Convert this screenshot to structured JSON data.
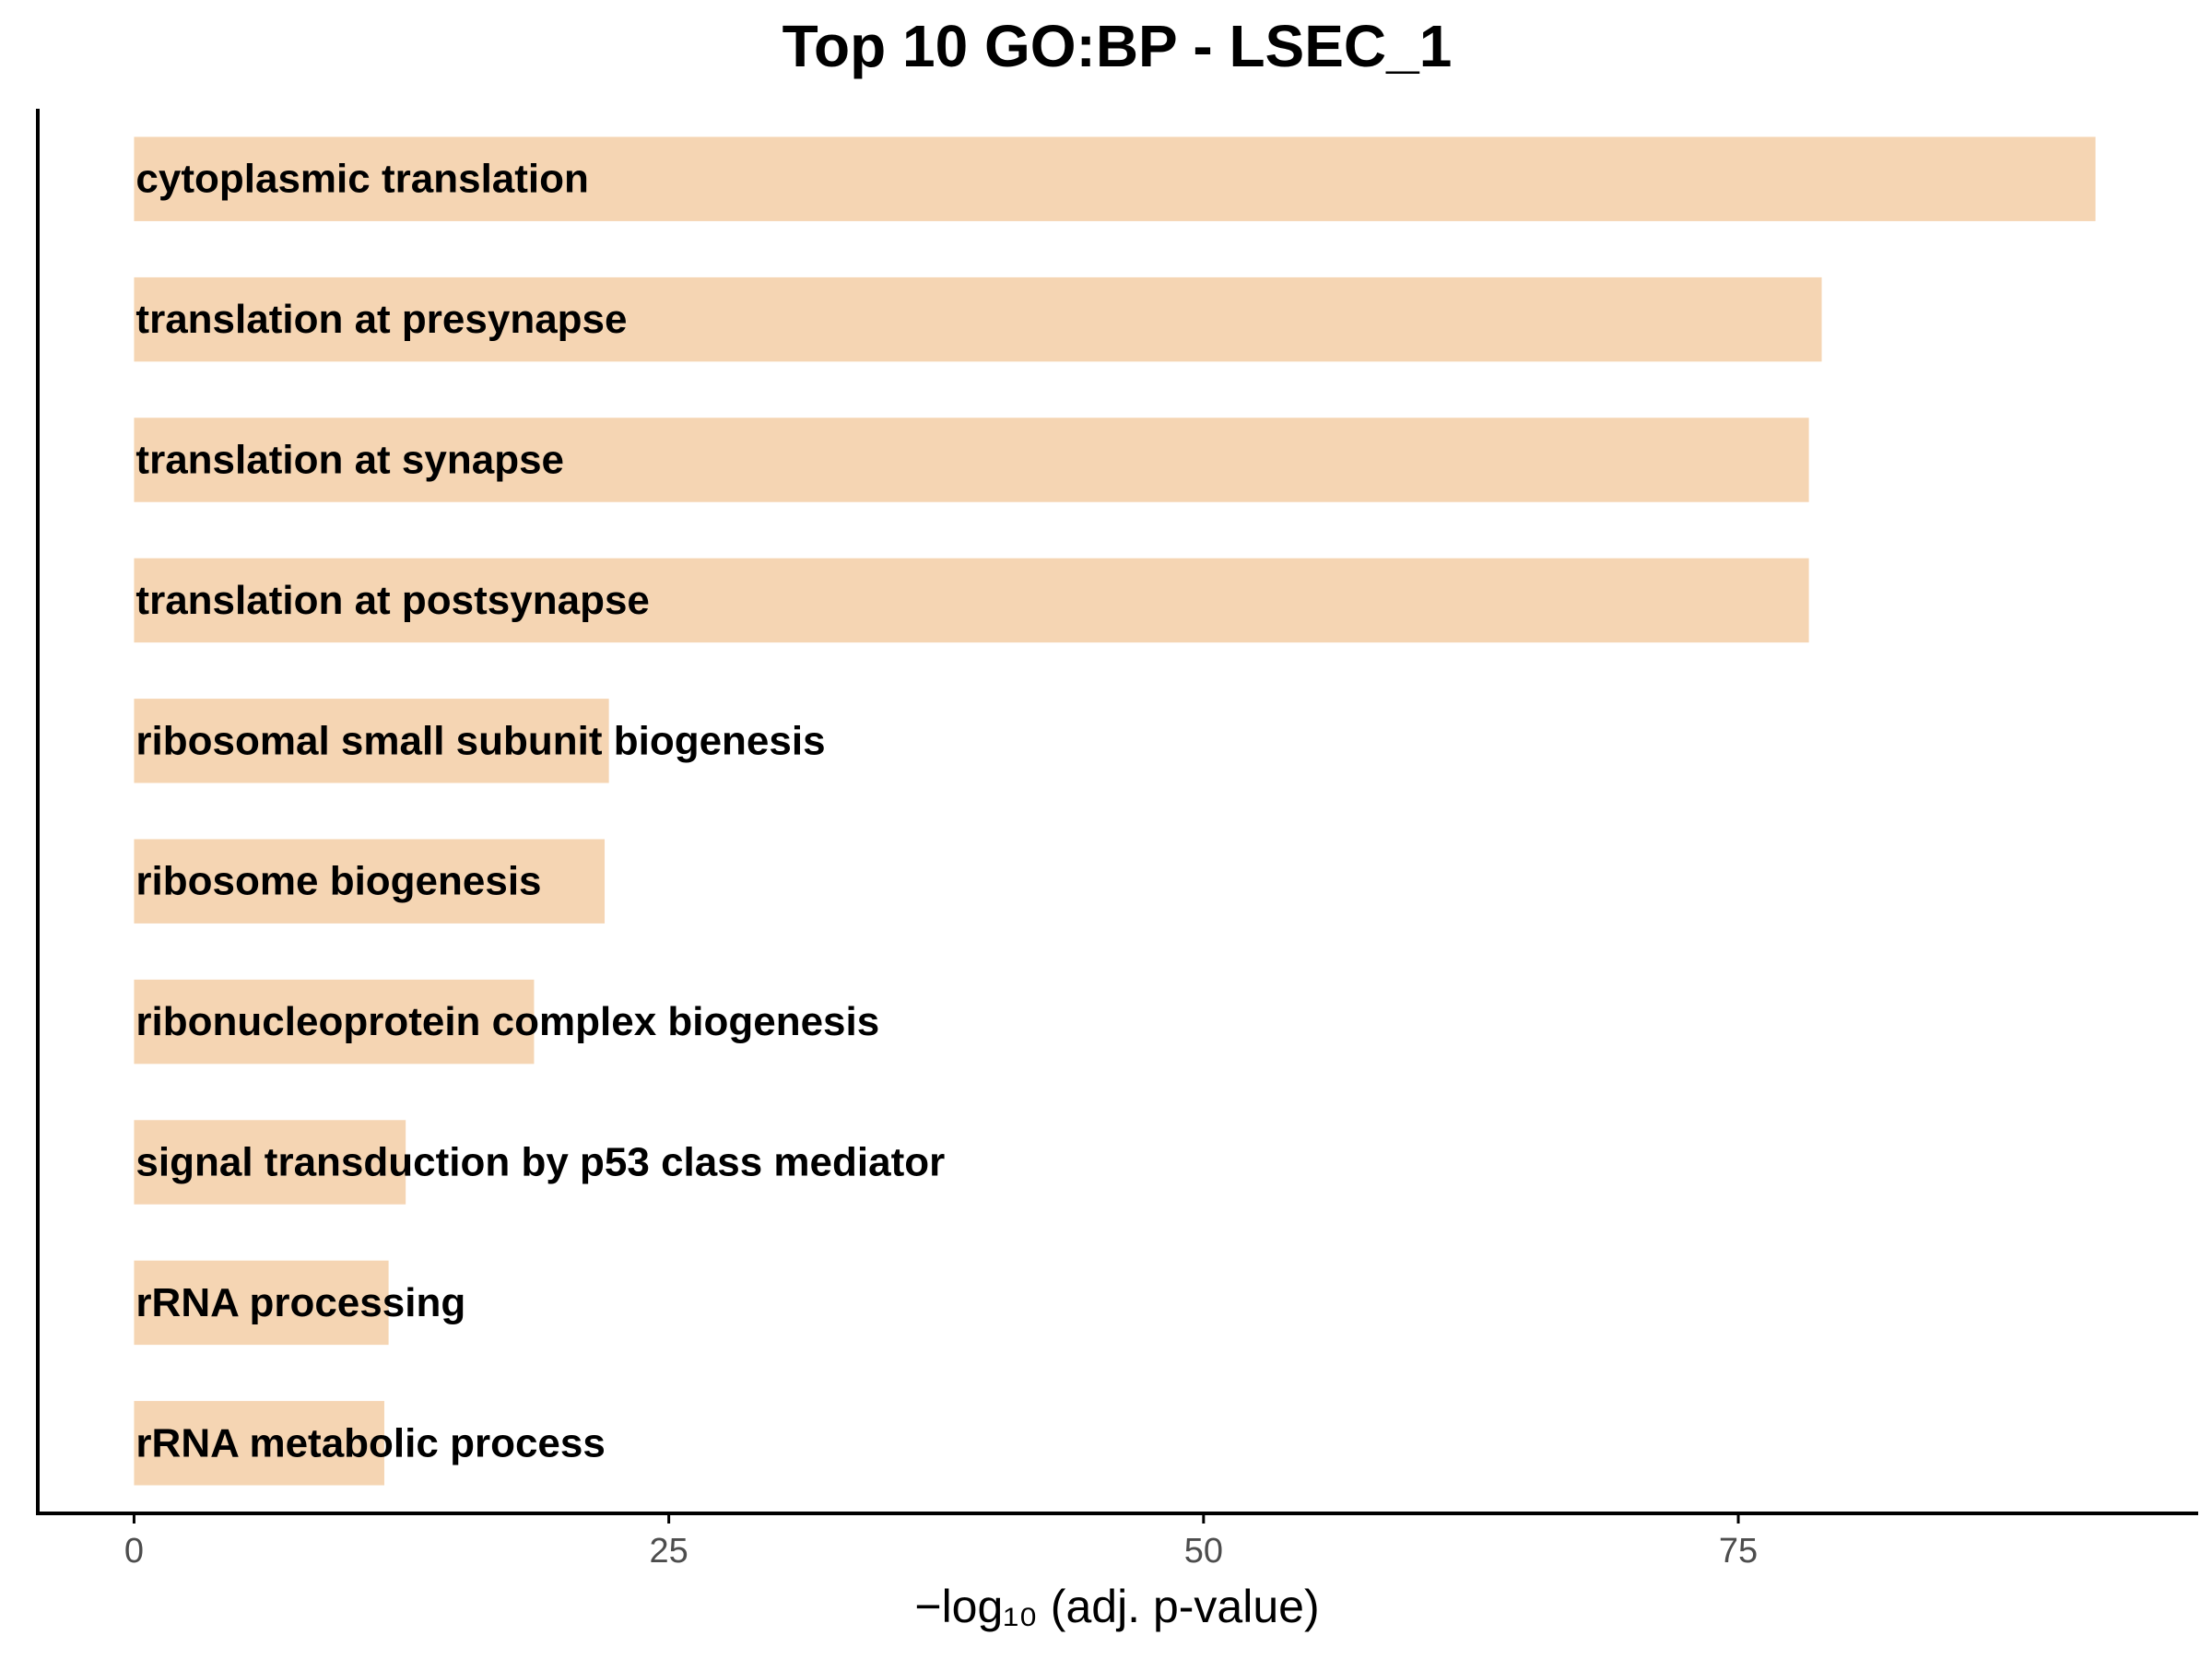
{
  "chart_data": {
    "type": "bar",
    "orientation": "horizontal",
    "title": "Top 10 GO:BP - LSEC_1",
    "xlabel": "−log₁₀ (adj. p-value)",
    "ylabel": "",
    "categories": [
      "cytoplasmic translation",
      "translation at presynapse",
      "translation at synapse",
      "translation at postsynapse",
      "ribosomal small subunit biogenesis",
      "ribosome biogenesis",
      "ribonucleoprotein complex biogenesis",
      "signal transduction by p53 class mediator",
      "rRNA processing",
      "rRNA metabolic process"
    ],
    "values": [
      91.7,
      78.9,
      78.3,
      78.3,
      22.2,
      22.0,
      18.7,
      12.7,
      11.9,
      11.7
    ],
    "xlim": [
      -4.5,
      96.5
    ],
    "xticks": [
      0,
      25,
      50,
      75
    ],
    "grid": false,
    "legend": "none",
    "bar_color": "#f5d5b3"
  }
}
